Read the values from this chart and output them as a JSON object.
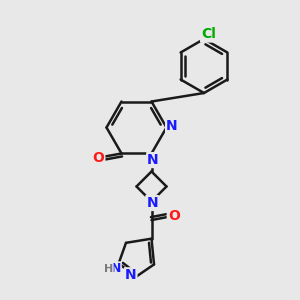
{
  "bg_color": "#e8e8e8",
  "bond_color": "#1a1a1a",
  "nitrogen_color": "#1a1aff",
  "oxygen_color": "#ff1a1a",
  "chlorine_color": "#00aa00",
  "hydrogen_color": "#7a7a7a",
  "bond_width": 1.8,
  "font_size": 10,
  "figsize": [
    3.0,
    3.0
  ],
  "dpi": 100,
  "xlim": [
    0,
    10
  ],
  "ylim": [
    0,
    10
  ]
}
